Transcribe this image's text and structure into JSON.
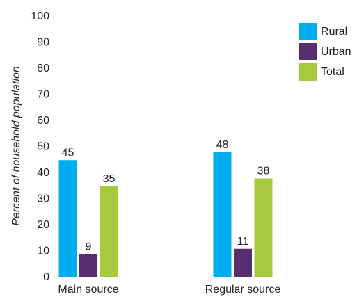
{
  "chart_data": {
    "type": "bar",
    "y_label": "Percent of household population",
    "categories": [
      "Main source",
      "Regular source"
    ],
    "series": [
      {
        "name": "Rural",
        "color": "#00aeef",
        "values": [
          45,
          48
        ]
      },
      {
        "name": "Urban",
        "color": "#582f6e",
        "values": [
          9,
          11
        ]
      },
      {
        "name": "Total",
        "color": "#a7c93d",
        "values": [
          35,
          38
        ]
      }
    ],
    "ylim": [
      0,
      100
    ],
    "yticks": [
      0,
      10,
      20,
      30,
      40,
      50,
      60,
      70,
      80,
      90,
      100
    ],
    "grid": false,
    "legend": "top-right"
  }
}
